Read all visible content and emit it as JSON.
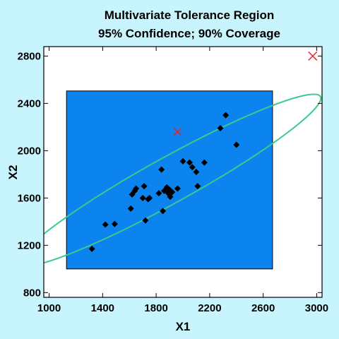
{
  "chart_data": {
    "type": "scatter",
    "title": "Multivariate Tolerance Region",
    "subtitle": "95% Confidence; 90% Coverage",
    "xlabel": "X1",
    "ylabel": "X2",
    "xlim": [
      960,
      3040
    ],
    "ylim": [
      760,
      2880
    ],
    "xticks": [
      "1000",
      "1400",
      "1800",
      "2200",
      "2600",
      "3000"
    ],
    "yticks": [
      "800",
      "1200",
      "1600",
      "2000",
      "2400",
      "2800"
    ],
    "xtick_values": [
      1000,
      1400,
      1800,
      2200,
      2600,
      3000
    ],
    "ytick_values": [
      800,
      1200,
      1600,
      2000,
      2400,
      2800
    ],
    "grid": false,
    "tolerance_rectangle": {
      "x_min": 1130,
      "x_max": 2670,
      "y_min": 1000,
      "y_max": 2505
    },
    "tolerance_ellipse": {
      "center_x": 1900,
      "center_y": 1750,
      "semi_major": 1290,
      "semi_minor": 170,
      "angle_deg": 29
    },
    "center_marker": {
      "x": 1960,
      "y": 2160
    },
    "outlier_marker": {
      "x": 2970,
      "y": 2800
    },
    "points": [
      {
        "x": 1320,
        "y": 1170
      },
      {
        "x": 1420,
        "y": 1375
      },
      {
        "x": 1490,
        "y": 1380
      },
      {
        "x": 1610,
        "y": 1510
      },
      {
        "x": 1620,
        "y": 1630
      },
      {
        "x": 1640,
        "y": 1660
      },
      {
        "x": 1650,
        "y": 1680
      },
      {
        "x": 1700,
        "y": 1600
      },
      {
        "x": 1710,
        "y": 1700
      },
      {
        "x": 1720,
        "y": 1410
      },
      {
        "x": 1740,
        "y": 1590
      },
      {
        "x": 1750,
        "y": 1600
      },
      {
        "x": 1820,
        "y": 1640
      },
      {
        "x": 1840,
        "y": 1840
      },
      {
        "x": 1850,
        "y": 1490
      },
      {
        "x": 1860,
        "y": 1660
      },
      {
        "x": 1880,
        "y": 1690
      },
      {
        "x": 1890,
        "y": 1640
      },
      {
        "x": 1900,
        "y": 1670
      },
      {
        "x": 1905,
        "y": 1610
      },
      {
        "x": 1920,
        "y": 1650
      },
      {
        "x": 1960,
        "y": 1680
      },
      {
        "x": 2000,
        "y": 1910
      },
      {
        "x": 2050,
        "y": 1900
      },
      {
        "x": 2070,
        "y": 1860
      },
      {
        "x": 2100,
        "y": 1820
      },
      {
        "x": 2110,
        "y": 1700
      },
      {
        "x": 2160,
        "y": 1900
      },
      {
        "x": 2280,
        "y": 2190
      },
      {
        "x": 2320,
        "y": 2300
      },
      {
        "x": 2400,
        "y": 2050
      }
    ],
    "colors": {
      "background": "#c8f5fd",
      "plot_background": "#ffffff",
      "rectangle_fill": "#0b84f0",
      "ellipse_stroke": "#3cc98c",
      "points": "#000000",
      "markers": "#e8232a"
    }
  }
}
